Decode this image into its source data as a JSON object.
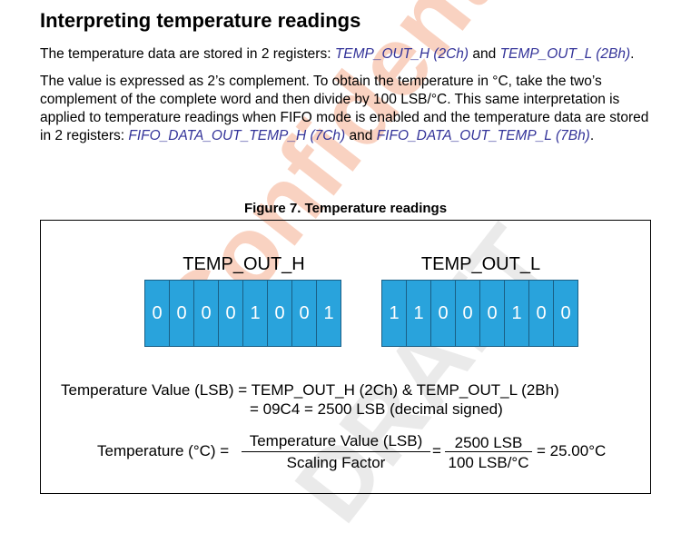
{
  "title": "Interpreting temperature readings",
  "paragraphs": [
    [
      {
        "text": "The temperature data are stored in 2 registers: "
      },
      {
        "text": "TEMP_OUT_H (2Ch)",
        "emphasis": true
      },
      {
        "text": " and "
      },
      {
        "text": "TEMP_OUT_L (2Bh)",
        "emphasis": true
      },
      {
        "text": "."
      }
    ],
    [
      {
        "text": "The value is expressed as 2’s complement. To obtain the temperature in °C, take the two’s complement of the complete word and then divide by 100 LSB/°C. This same interpretation is applied to temperature readings when FIFO mode is enabled and the temperature data are stored in 2 registers: "
      },
      {
        "text": "FIFO_DATA_OUT_TEMP_H (7Ch)",
        "emphasis": true
      },
      {
        "text": " and "
      },
      {
        "text": "FIFO_DATA_OUT_TEMP_L (7Bh)",
        "emphasis": true
      },
      {
        "text": "."
      }
    ]
  ],
  "figure": {
    "caption": "Figure 7. Temperature readings",
    "registers": [
      {
        "name": "TEMP_OUT_H",
        "bits": [
          0,
          0,
          0,
          0,
          1,
          0,
          0,
          1
        ]
      },
      {
        "name": "TEMP_OUT_L",
        "bits": [
          1,
          1,
          0,
          0,
          0,
          1,
          0,
          0
        ]
      }
    ],
    "equation_line_1": "Temperature Value (LSB) = TEMP_OUT_H (2Ch) & TEMP_OUT_L (2Bh)",
    "equation_line_2": "= 09C4 = 2500 LSB (decimal signed)",
    "formula": {
      "left": "Temperature (°C) =",
      "numerator_1": "Temperature Value (LSB)",
      "denominator_1": "Scaling Factor",
      "equals": "=",
      "numerator_2": "2500 LSB",
      "denominator_2": "100 LSB/°C",
      "result": "= 25.00°C"
    }
  },
  "watermark": [
    "Confidential",
    "DRAFT"
  ]
}
